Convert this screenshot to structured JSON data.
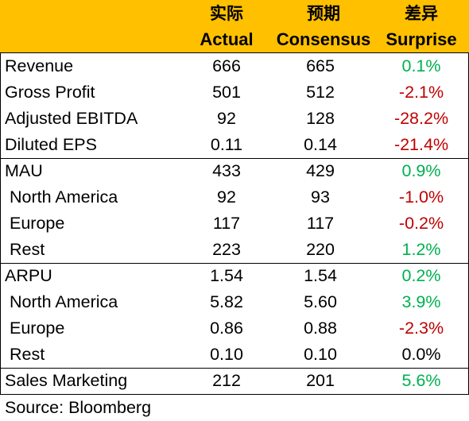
{
  "colors": {
    "header_bg": "#FFC000",
    "positive": "#00B050",
    "negative": "#C00000",
    "neutral": "#000000"
  },
  "header": {
    "actual_cn": "实际",
    "actual_en": "Actual",
    "consensus_cn": "预期",
    "consensus_en": "Consensus",
    "surprise_cn": "差异",
    "surprise_en": "Surprise"
  },
  "rows": [
    {
      "label": "Revenue",
      "actual": "666",
      "consensus": "665",
      "surprise": "0.1%",
      "sign": "positive"
    },
    {
      "label": "Gross Profit",
      "actual": "501",
      "consensus": "512",
      "surprise": "-2.1%",
      "sign": "negative"
    },
    {
      "label": "Adjusted EBITDA",
      "actual": "92",
      "consensus": "128",
      "surprise": "-28.2%",
      "sign": "negative"
    },
    {
      "label": "Diluted EPS",
      "actual": "0.11",
      "consensus": "0.14",
      "surprise": "-21.4%",
      "sign": "negative"
    },
    {
      "label": "MAU",
      "actual": "433",
      "consensus": "429",
      "surprise": "0.9%",
      "sign": "positive"
    },
    {
      "label": "North America",
      "actual": "92",
      "consensus": "93",
      "surprise": "-1.0%",
      "sign": "negative"
    },
    {
      "label": "Europe",
      "actual": "117",
      "consensus": "117",
      "surprise": "-0.2%",
      "sign": "negative"
    },
    {
      "label": "Rest",
      "actual": "223",
      "consensus": "220",
      "surprise": "1.2%",
      "sign": "positive"
    },
    {
      "label": "ARPU",
      "actual": "1.54",
      "consensus": "1.54",
      "surprise": "0.2%",
      "sign": "positive"
    },
    {
      "label": "North America",
      "actual": "5.82",
      "consensus": "5.60",
      "surprise": "3.9%",
      "sign": "positive"
    },
    {
      "label": "Europe",
      "actual": "0.86",
      "consensus": "0.88",
      "surprise": "-2.3%",
      "sign": "negative"
    },
    {
      "label": "Rest",
      "actual": "0.10",
      "consensus": "0.10",
      "surprise": "0.0%",
      "sign": "neutral"
    },
    {
      "label": "Sales Marketing",
      "actual": "212",
      "consensus": "201",
      "surprise": "5.6%",
      "sign": "positive"
    }
  ],
  "source": "Source: Bloomberg"
}
